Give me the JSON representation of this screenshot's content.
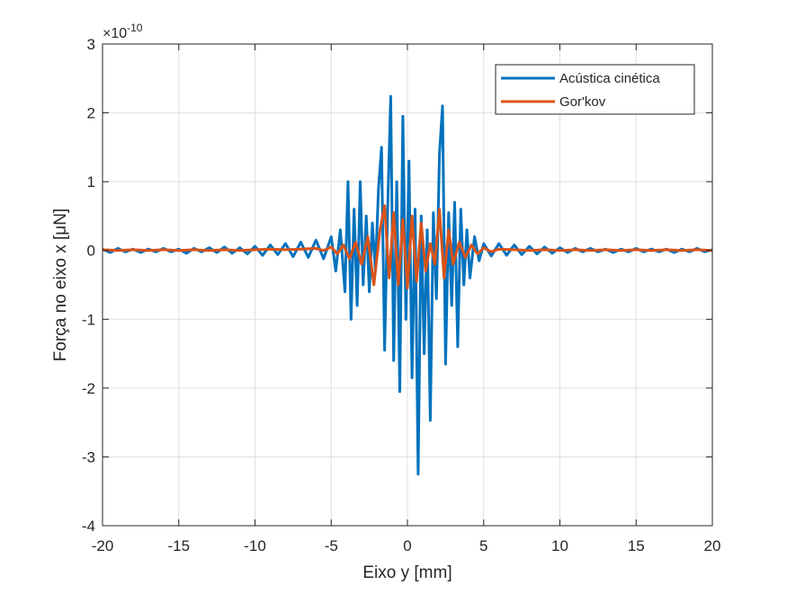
{
  "chart_data": {
    "type": "line",
    "title": "",
    "xlabel": "Eixo y [mm]",
    "ylabel": "Força no eixo x [μN]",
    "xlim": [
      -20,
      20
    ],
    "ylim": [
      -4,
      3
    ],
    "y_scale_exponent_label": "×10",
    "y_scale_exponent_power": "-10",
    "x_ticks": [
      -20,
      -15,
      -10,
      -5,
      0,
      5,
      10,
      15,
      20
    ],
    "x_tick_labels": [
      "-20",
      "-15",
      "-10",
      "-5",
      "0",
      "5",
      "10",
      "15",
      "20"
    ],
    "y_ticks": [
      -4,
      -3,
      -2,
      -1,
      0,
      1,
      2,
      3
    ],
    "y_tick_labels": [
      "-4",
      "-3",
      "-2",
      "-1",
      "0",
      "1",
      "2",
      "3"
    ],
    "grid": true,
    "legend_position": "top-right",
    "series": [
      {
        "name": "Acústica cinética",
        "color": "#0072BD",
        "x": [
          -20,
          -19.5,
          -19,
          -18.5,
          -18,
          -17.5,
          -17,
          -16.5,
          -16,
          -15.5,
          -15,
          -14.5,
          -14,
          -13.5,
          -13,
          -12.5,
          -12,
          -11.5,
          -11,
          -10.5,
          -10,
          -9.5,
          -9,
          -8.5,
          -8,
          -7.5,
          -7,
          -6.5,
          -6,
          -5.5,
          -5,
          -4.7,
          -4.4,
          -4.1,
          -3.9,
          -3.7,
          -3.5,
          -3.3,
          -3.1,
          -2.9,
          -2.7,
          -2.5,
          -2.3,
          -2.1,
          -1.9,
          -1.7,
          -1.5,
          -1.3,
          -1.1,
          -0.9,
          -0.7,
          -0.5,
          -0.3,
          -0.1,
          0.1,
          0.3,
          0.5,
          0.7,
          0.9,
          1.1,
          1.3,
          1.5,
          1.7,
          1.9,
          2.1,
          2.3,
          2.5,
          2.7,
          2.9,
          3.1,
          3.3,
          3.5,
          3.7,
          3.9,
          4.1,
          4.4,
          4.7,
          5,
          5.5,
          6,
          6.5,
          7,
          7.5,
          8,
          8.5,
          9,
          9.5,
          10,
          10.5,
          11,
          11.5,
          12,
          12.5,
          13,
          13.5,
          14,
          14.5,
          15,
          15.5,
          16,
          16.5,
          17,
          17.5,
          18,
          18.5,
          19,
          19.5,
          20
        ],
        "y": [
          0.02,
          -0.03,
          0.03,
          -0.02,
          0.02,
          -0.03,
          0.02,
          -0.02,
          0.03,
          -0.02,
          0.02,
          -0.04,
          0.03,
          -0.02,
          0.04,
          -0.03,
          0.05,
          -0.04,
          0.04,
          -0.05,
          0.06,
          -0.07,
          0.08,
          -0.06,
          0.1,
          -0.09,
          0.12,
          -0.1,
          0.15,
          -0.12,
          0.2,
          -0.3,
          0.3,
          -0.6,
          1.0,
          -1.0,
          0.6,
          -0.8,
          1.0,
          -0.5,
          0.5,
          -0.6,
          0.4,
          -0.3,
          0.9,
          1.5,
          -1.45,
          0.6,
          2.24,
          -1.6,
          1.0,
          -2.05,
          1.95,
          -1.0,
          1.3,
          -1.85,
          0.6,
          -3.25,
          0.5,
          -1.5,
          0.3,
          -2.47,
          0.55,
          -0.7,
          1.4,
          2.1,
          -1.65,
          0.55,
          -0.8,
          0.7,
          -1.4,
          0.6,
          -0.5,
          0.3,
          -0.4,
          0.2,
          -0.15,
          0.1,
          -0.08,
          0.1,
          -0.07,
          0.08,
          -0.06,
          0.06,
          -0.05,
          0.05,
          -0.04,
          0.04,
          -0.03,
          0.03,
          -0.02,
          0.03,
          -0.02,
          0.02,
          -0.03,
          0.02,
          -0.02,
          0.03,
          -0.02,
          0.02,
          -0.02,
          0.02,
          -0.03,
          0.02,
          -0.02,
          0.03,
          -0.02,
          0.01
        ]
      },
      {
        "name": "Gor'kov",
        "color": "#D95319",
        "x": [
          -20,
          -19,
          -18,
          -17,
          -16,
          -15,
          -14,
          -13,
          -12,
          -11,
          -10,
          -9,
          -8,
          -7,
          -6,
          -5.5,
          -5,
          -4.6,
          -4.2,
          -3.8,
          -3.4,
          -3.0,
          -2.6,
          -2.2,
          -1.8,
          -1.5,
          -1.2,
          -0.9,
          -0.6,
          -0.3,
          0,
          0.3,
          0.6,
          0.9,
          1.2,
          1.5,
          1.8,
          2.1,
          2.4,
          2.7,
          3.0,
          3.4,
          3.8,
          4.2,
          4.6,
          5,
          5.5,
          6,
          7,
          8,
          9,
          10,
          11,
          12,
          13,
          14,
          15,
          16,
          17,
          18,
          19,
          20
        ],
        "y": [
          0.01,
          0.0,
          0.01,
          0.0,
          0.01,
          0.0,
          0.01,
          0.0,
          0.01,
          0.0,
          0.01,
          0.02,
          0.01,
          0.02,
          0.03,
          0.0,
          0.05,
          -0.05,
          0.08,
          -0.12,
          0.12,
          -0.2,
          0.2,
          -0.5,
          0.3,
          0.65,
          -0.4,
          0.55,
          -0.5,
          0.45,
          -0.55,
          0.5,
          -0.45,
          0.4,
          -0.3,
          0.1,
          -0.2,
          0.6,
          -0.4,
          0.3,
          -0.2,
          0.12,
          -0.1,
          0.08,
          -0.05,
          0.04,
          -0.02,
          0.02,
          0.01,
          0.0,
          0.01,
          0.0,
          0.01,
          0.0,
          0.01,
          0.0,
          0.01,
          0.0,
          0.01,
          0.0,
          0.01,
          0.0
        ]
      }
    ]
  }
}
